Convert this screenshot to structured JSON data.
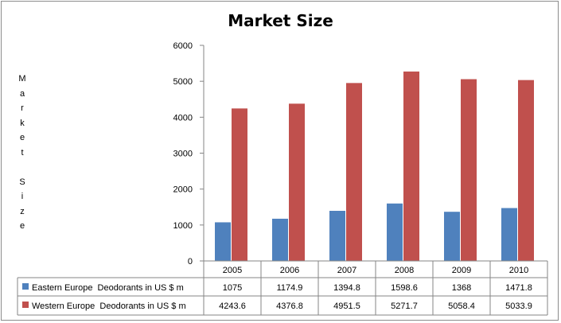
{
  "chart_data": {
    "type": "bar",
    "title": "Market Size",
    "ylabel": "Market Size",
    "xlabel": "",
    "ylim": [
      0,
      6000
    ],
    "yticks": [
      0,
      1000,
      2000,
      3000,
      4000,
      5000,
      6000
    ],
    "categories": [
      "2005",
      "2006",
      "2007",
      "2008",
      "2009",
      "2010"
    ],
    "legend_position": "data-table",
    "grid": false,
    "series": [
      {
        "name": "Eastern Europe  Deodorants in US $ m",
        "color": "#4f81bd",
        "values": [
          1075,
          1174.9,
          1394.8,
          1598.6,
          1368,
          1471.8
        ]
      },
      {
        "name": "Western Europe  Deodorants in US $ m",
        "color": "#c0504d",
        "values": [
          4243.6,
          4376.8,
          4951.5,
          5271.7,
          5058.4,
          5033.9
        ]
      }
    ],
    "table_values": [
      [
        "1075",
        "1174.9",
        "1394.8",
        "1598.6",
        "1368",
        "1471.8"
      ],
      [
        "4243.6",
        "4376.8",
        "4951.5",
        "5271.7",
        "5058.4",
        "5033.9"
      ]
    ]
  }
}
